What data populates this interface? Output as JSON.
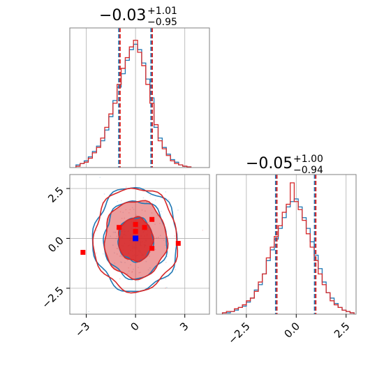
{
  "chart_data": {
    "type": "corner",
    "colors": {
      "series_a": "#1f77b4",
      "series_b": "#d62728",
      "marker_truth": "#0000ff",
      "marker_samples": "#ff0000",
      "grid": "#b0b0b0",
      "frame": "#808080"
    },
    "grid": true,
    "titles": {
      "p0": {
        "median": "−0.03",
        "plus": "+1.01",
        "minus": "−0.95"
      },
      "p1": {
        "median": "−0.05",
        "plus": "+1.00",
        "minus": "−0.94"
      }
    },
    "hist_p0": {
      "xlim": [
        -4.0,
        4.5
      ],
      "quantiles": [
        -0.98,
        0.98
      ],
      "bin_width": 0.25,
      "bins_x": [
        -3.5,
        -3.25,
        -3.0,
        -2.75,
        -2.5,
        -2.25,
        -2.0,
        -1.75,
        -1.5,
        -1.25,
        -1.0,
        -0.75,
        -0.5,
        -0.25,
        0.0,
        0.25,
        0.5,
        0.75,
        1.0,
        1.25,
        1.5,
        1.75,
        2.0,
        2.25,
        2.5,
        2.75,
        3.0,
        3.25
      ],
      "series_a": [
        0.02,
        0.03,
        0.05,
        0.08,
        0.12,
        0.16,
        0.2,
        0.28,
        0.38,
        0.5,
        0.6,
        0.7,
        0.8,
        0.88,
        0.92,
        0.88,
        0.78,
        0.66,
        0.52,
        0.3,
        0.22,
        0.15,
        0.1,
        0.06,
        0.04,
        0.02,
        0.01,
        0.005
      ],
      "series_b": [
        0.01,
        0.03,
        0.04,
        0.07,
        0.11,
        0.15,
        0.22,
        0.3,
        0.4,
        0.48,
        0.62,
        0.74,
        0.82,
        0.9,
        0.95,
        0.86,
        0.76,
        0.62,
        0.48,
        0.32,
        0.2,
        0.14,
        0.09,
        0.05,
        0.03,
        0.02,
        0.01,
        0.005
      ]
    },
    "hist_p1": {
      "xlim": [
        -4.0,
        3.0
      ],
      "ticks": [
        -2.5,
        0.0,
        2.5
      ],
      "tick_labels": [
        "−2.5",
        "0.0",
        "2.5"
      ],
      "quantiles": [
        -1.0,
        0.95
      ],
      "bin_width": 0.2,
      "bins_x": [
        -3.6,
        -3.4,
        -3.2,
        -3.0,
        -2.8,
        -2.6,
        -2.4,
        -2.2,
        -2.0,
        -1.8,
        -1.6,
        -1.4,
        -1.2,
        -1.0,
        -0.8,
        -0.6,
        -0.4,
        -0.2,
        0.0,
        0.2,
        0.4,
        0.6,
        0.8,
        1.0,
        1.2,
        1.4,
        1.6,
        1.8,
        2.0,
        2.2,
        2.4,
        2.6,
        2.8
      ],
      "series_a": [
        0.01,
        0.01,
        0.02,
        0.03,
        0.05,
        0.06,
        0.09,
        0.12,
        0.18,
        0.22,
        0.3,
        0.4,
        0.48,
        0.56,
        0.64,
        0.72,
        0.8,
        0.84,
        0.86,
        0.8,
        0.72,
        0.64,
        0.54,
        0.44,
        0.34,
        0.24,
        0.16,
        0.12,
        0.08,
        0.05,
        0.03,
        0.02,
        0.01
      ],
      "series_b": [
        0.01,
        0.02,
        0.02,
        0.04,
        0.05,
        0.07,
        0.1,
        0.12,
        0.17,
        0.24,
        0.3,
        0.42,
        0.5,
        0.58,
        0.66,
        0.76,
        0.82,
        0.98,
        0.84,
        0.78,
        0.7,
        0.6,
        0.5,
        0.4,
        0.3,
        0.22,
        0.16,
        0.1,
        0.07,
        0.05,
        0.03,
        0.02,
        0.01
      ]
    },
    "joint": {
      "xlim": [
        -4.0,
        4.5
      ],
      "ylim": [
        -3.8,
        3.2
      ],
      "x_ticks": [
        -3,
        0,
        3
      ],
      "x_tick_labels": [
        "−3",
        "0",
        "3"
      ],
      "y_ticks": [
        -2.5,
        0.0,
        2.5
      ],
      "y_tick_labels": [
        "−2.5",
        "0.0",
        "2.5"
      ],
      "contour_levels": [
        {
          "rx": 1.05,
          "ry": 1.1,
          "fill": 0.85
        },
        {
          "rx": 1.9,
          "ry": 1.95,
          "fill": 0.45
        },
        {
          "rx": 2.55,
          "ry": 2.6,
          "fill": 0.0
        }
      ],
      "truth_point": [
        0.0,
        0.0
      ],
      "sample_points": [
        [
          -1.0,
          0.55
        ],
        [
          0.0,
          0.7
        ],
        [
          0.55,
          0.55
        ],
        [
          1.0,
          0.95
        ],
        [
          0.0,
          0.35
        ],
        [
          1.0,
          -0.5
        ],
        [
          -3.2,
          -0.7
        ],
        [
          2.6,
          -0.25
        ]
      ]
    }
  }
}
